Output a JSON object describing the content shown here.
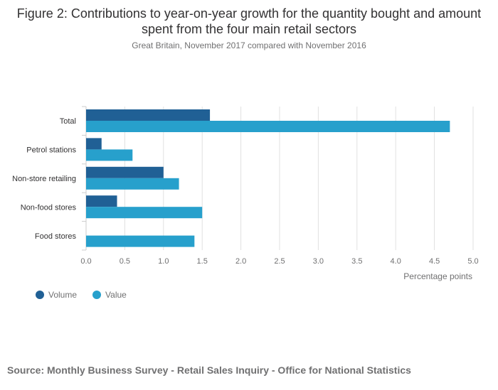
{
  "title": "Figure 2: Contributions to year-on-year growth for the quantity bought and amount spent from the four main retail sectors",
  "subtitle": "Great Britain, November 2017 compared with November 2016",
  "source": "Source: Monthly Business Survey - Retail Sales Inquiry - Office for National Statistics",
  "colors": {
    "volume": "#206095",
    "value": "#27a0cc",
    "grid": "#e0e0e0",
    "axis": "#cccccc"
  },
  "chart_data": {
    "type": "bar",
    "orientation": "horizontal",
    "categories": [
      "Total",
      "Petrol stations",
      "Non-store retailing",
      "Non-food stores",
      "Food stores"
    ],
    "series": [
      {
        "name": "Volume",
        "values": [
          1.6,
          0.2,
          1.0,
          0.4,
          0.0
        ]
      },
      {
        "name": "Value",
        "values": [
          4.7,
          0.6,
          1.2,
          1.5,
          1.4
        ]
      }
    ],
    "xlabel": "Percentage points",
    "ylabel": "",
    "xlim": [
      0,
      5.0
    ],
    "xticks": [
      "0.0",
      "0.5",
      "1.0",
      "1.5",
      "2.0",
      "2.5",
      "3.0",
      "3.5",
      "4.0",
      "4.5",
      "5.0"
    ],
    "grid": true,
    "legend_position": "bottom-left"
  }
}
